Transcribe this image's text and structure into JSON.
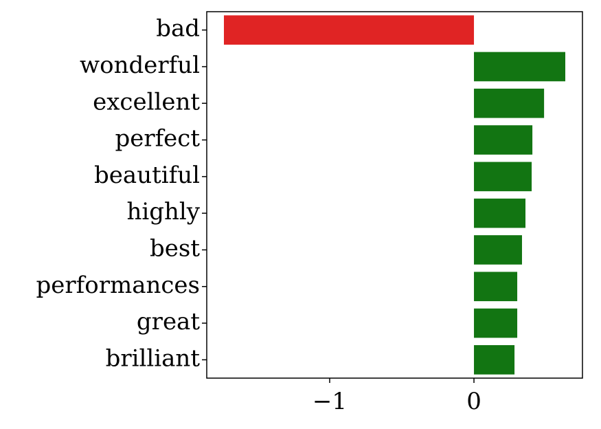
{
  "chart_data": {
    "type": "barh",
    "categories": [
      "bad",
      "wonderful",
      "excellent",
      "perfect",
      "beautiful",
      "highly",
      "best",
      "performances",
      "great",
      "brilliant"
    ],
    "values": [
      -1.733,
      0.633,
      0.486,
      0.405,
      0.4,
      0.357,
      0.333,
      0.3,
      0.3,
      0.281
    ],
    "colors": [
      "#e02424",
      "#127512",
      "#127512",
      "#127512",
      "#127512",
      "#127512",
      "#127512",
      "#127512",
      "#127512",
      "#127512"
    ],
    "xlim": [
      -1.852,
      0.752
    ],
    "xticks": [
      {
        "value": -1,
        "label": "−1"
      },
      0
    ],
    "grid": false
  }
}
